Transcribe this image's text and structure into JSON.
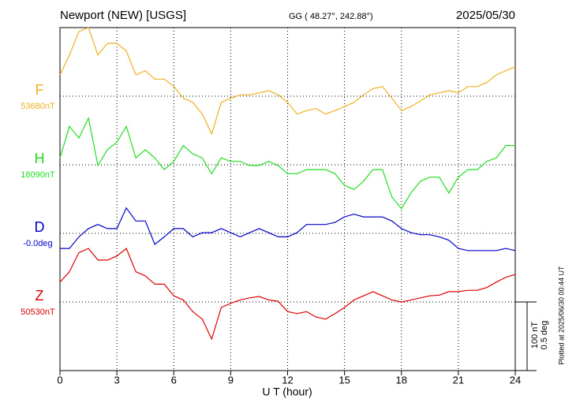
{
  "chart_data": {
    "type": "line",
    "title": "Newport (NEW)  [USGS]",
    "subtitle": "GG ( 48.27°, 242.88°)",
    "date": "2025/05/30",
    "x_label": "U T (hour)",
    "scale_labels": [
      "100 nT",
      "0.5 deg"
    ],
    "footnote": "Plotted at 2025/06/30 00:44 UT",
    "xlim": [
      0,
      24
    ],
    "xticks": [
      0,
      3,
      6,
      9,
      12,
      15,
      18,
      21,
      24
    ],
    "grid": true,
    "x": [
      0,
      0.5,
      1,
      1.5,
      2,
      2.5,
      3,
      3.5,
      4,
      4.5,
      5,
      5.5,
      6,
      6.5,
      7,
      7.5,
      8,
      8.5,
      9,
      9.5,
      10,
      10.5,
      11,
      11.5,
      12,
      12.5,
      13,
      13.5,
      14,
      14.5,
      15,
      15.5,
      16,
      16.5,
      17,
      17.5,
      18,
      18.5,
      19,
      19.5,
      20,
      20.5,
      21,
      21.5,
      22,
      22.5,
      23,
      23.5,
      24
    ],
    "series": [
      {
        "name": "F",
        "baseline": "53680nT",
        "color": "#f0b020",
        "values": [
          31,
          60,
          94,
          100,
          60,
          77,
          77,
          66,
          31,
          37,
          25,
          25,
          14,
          -3,
          -9,
          -26,
          -55,
          -9,
          -3,
          2,
          2,
          5,
          8,
          2,
          -9,
          -26,
          -21,
          -18,
          -26,
          -21,
          -15,
          -9,
          2,
          11,
          14,
          -3,
          -21,
          -15,
          -7,
          2,
          5,
          8,
          5,
          14,
          14,
          20,
          31,
          37,
          43
        ]
      },
      {
        "name": "H",
        "baseline": "18090nT",
        "color": "#22dd22",
        "values": [
          10,
          56,
          39,
          68,
          -1,
          22,
          33,
          56,
          10,
          22,
          10,
          -7,
          5,
          28,
          16,
          10,
          -13,
          10,
          5,
          5,
          -1,
          -1,
          5,
          -1,
          -13,
          -13,
          -7,
          -7,
          -7,
          -13,
          -30,
          -36,
          -24,
          -7,
          -7,
          -47,
          -64,
          -41,
          -24,
          -18,
          -18,
          -41,
          -18,
          -7,
          -7,
          5,
          10,
          28,
          28
        ]
      },
      {
        "name": "D",
        "baseline": "-0.0deg",
        "color": "#0000cc",
        "values": [
          -22,
          -22,
          -5,
          7,
          13,
          7,
          7,
          37,
          18,
          18,
          -16,
          -5,
          7,
          7,
          -5,
          1,
          1,
          7,
          1,
          -5,
          1,
          7,
          1,
          -5,
          -5,
          1,
          13,
          13,
          13,
          16,
          24,
          28,
          24,
          24,
          24,
          18,
          7,
          1,
          -2,
          -2,
          -5,
          -10,
          -22,
          -25,
          -25,
          -25,
          -25,
          -22,
          -25
        ]
      },
      {
        "name": "Z",
        "baseline": "50530nT",
        "color": "#dd0000",
        "values": [
          29,
          44,
          72,
          78,
          61,
          61,
          67,
          78,
          44,
          38,
          26,
          26,
          9,
          3,
          -14,
          -25,
          -54,
          -8,
          -2,
          3,
          6,
          8,
          3,
          1,
          -14,
          -17,
          -14,
          -22,
          -25,
          -17,
          -8,
          3,
          9,
          15,
          9,
          3,
          0,
          3,
          6,
          9,
          10,
          15,
          15,
          17,
          17,
          21,
          29,
          36,
          40
        ]
      }
    ]
  }
}
